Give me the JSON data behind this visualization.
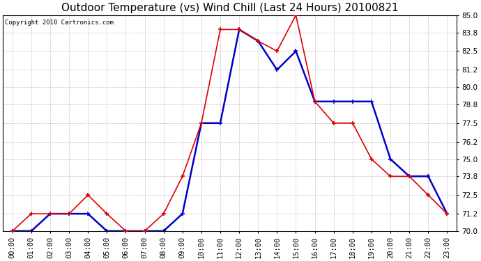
{
  "title": "Outdoor Temperature (vs) Wind Chill (Last 24 Hours) 20100821",
  "copyright": "Copyright 2010 Cartronics.com",
  "x_labels": [
    "00:00",
    "01:00",
    "02:00",
    "03:00",
    "04:00",
    "05:00",
    "06:00",
    "07:00",
    "08:00",
    "09:00",
    "10:00",
    "11:00",
    "12:00",
    "13:00",
    "14:00",
    "15:00",
    "16:00",
    "17:00",
    "18:00",
    "19:00",
    "20:00",
    "21:00",
    "22:00",
    "23:00"
  ],
  "temp": [
    70.0,
    71.2,
    71.2,
    71.2,
    72.5,
    71.2,
    70.0,
    70.0,
    71.2,
    73.8,
    77.5,
    84.0,
    84.0,
    83.2,
    82.5,
    85.0,
    79.0,
    77.5,
    77.5,
    75.0,
    73.8,
    73.8,
    72.5,
    71.2
  ],
  "windchill": [
    70.0,
    70.0,
    71.2,
    71.2,
    71.2,
    70.0,
    70.0,
    70.0,
    70.0,
    71.2,
    77.5,
    77.5,
    84.0,
    83.2,
    81.2,
    82.5,
    79.0,
    79.0,
    79.0,
    79.0,
    75.0,
    73.8,
    73.8,
    71.2
  ],
  "temp_color": "#dd0000",
  "windchill_color": "#0000cc",
  "ylim": [
    70.0,
    85.0
  ],
  "yticks": [
    70.0,
    71.2,
    72.5,
    73.8,
    75.0,
    76.2,
    77.5,
    78.8,
    80.0,
    81.2,
    82.5,
    83.8,
    85.0
  ],
  "bg_color": "#ffffff",
  "grid_color": "#aaaaaa",
  "title_fontsize": 11,
  "tick_fontsize": 7.5,
  "copyright_fontsize": 6.5
}
